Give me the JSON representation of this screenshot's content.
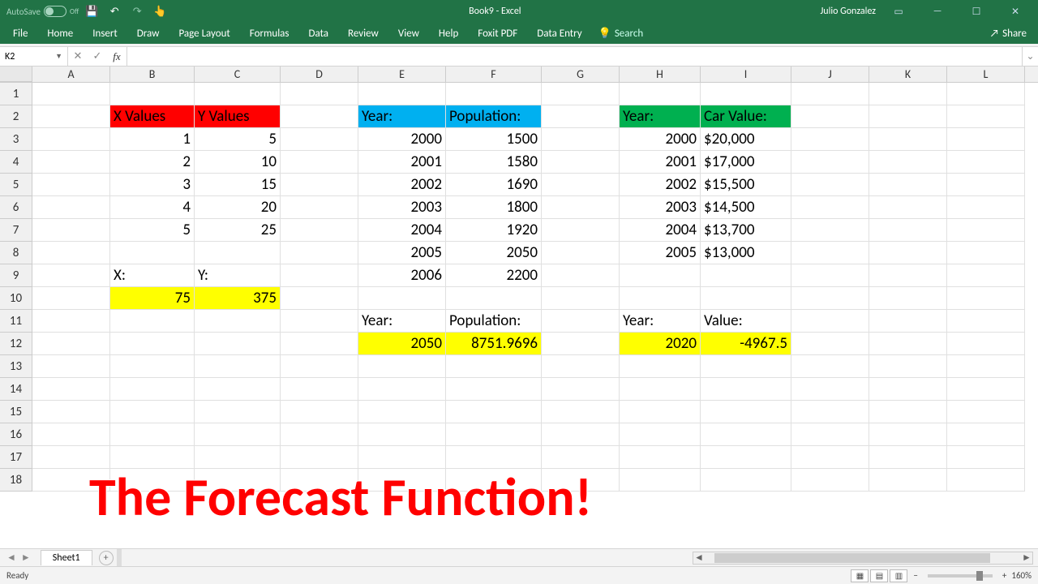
{
  "titlebar": {
    "autosave": "AutoSave",
    "autosave_state": "Off",
    "doc_title": "Book9 - Excel",
    "user": "Julio Gonzalez"
  },
  "ribbon": {
    "tabs": [
      "File",
      "Home",
      "Insert",
      "Draw",
      "Page Layout",
      "Formulas",
      "Data",
      "Review",
      "View",
      "Help",
      "Foxit PDF",
      "Data Entry"
    ],
    "tell_me": "Search",
    "share": "Share"
  },
  "namebox": "K2",
  "columns": [
    "A",
    "B",
    "C",
    "D",
    "E",
    "F",
    "G",
    "H",
    "I",
    "J",
    "K",
    "L"
  ],
  "rowcount": 18,
  "cells": {
    "B2": {
      "v": "X Values",
      "fill": "red",
      "align": "l"
    },
    "C2": {
      "v": "Y Values",
      "fill": "red",
      "align": "l"
    },
    "B3": {
      "v": "1",
      "align": "r"
    },
    "C3": {
      "v": "5",
      "align": "r"
    },
    "B4": {
      "v": "2",
      "align": "r"
    },
    "C4": {
      "v": "10",
      "align": "r"
    },
    "B5": {
      "v": "3",
      "align": "r"
    },
    "C5": {
      "v": "15",
      "align": "r"
    },
    "B6": {
      "v": "4",
      "align": "r"
    },
    "C6": {
      "v": "20",
      "align": "r"
    },
    "B7": {
      "v": "5",
      "align": "r"
    },
    "C7": {
      "v": "25",
      "align": "r"
    },
    "B9": {
      "v": "X:",
      "align": "l"
    },
    "C9": {
      "v": "Y:",
      "align": "l"
    },
    "B10": {
      "v": "75",
      "fill": "yellow",
      "align": "r"
    },
    "C10": {
      "v": "375",
      "fill": "yellow",
      "align": "r"
    },
    "E2": {
      "v": "Year:",
      "fill": "blue",
      "align": "l"
    },
    "F2": {
      "v": "Population:",
      "fill": "blue",
      "align": "l"
    },
    "E3": {
      "v": "2000",
      "align": "r"
    },
    "F3": {
      "v": "1500",
      "align": "r"
    },
    "E4": {
      "v": "2001",
      "align": "r"
    },
    "F4": {
      "v": "1580",
      "align": "r"
    },
    "E5": {
      "v": "2002",
      "align": "r"
    },
    "F5": {
      "v": "1690",
      "align": "r"
    },
    "E6": {
      "v": "2003",
      "align": "r"
    },
    "F6": {
      "v": "1800",
      "align": "r"
    },
    "E7": {
      "v": "2004",
      "align": "r"
    },
    "F7": {
      "v": "1920",
      "align": "r"
    },
    "E8": {
      "v": "2005",
      "align": "r"
    },
    "F8": {
      "v": "2050",
      "align": "r"
    },
    "E9": {
      "v": "2006",
      "align": "r"
    },
    "F9": {
      "v": "2200",
      "align": "r"
    },
    "E11": {
      "v": "Year:",
      "align": "l"
    },
    "F11": {
      "v": "Population:",
      "align": "l"
    },
    "E12": {
      "v": "2050",
      "fill": "yellow",
      "align": "r"
    },
    "F12": {
      "v": "8751.9696",
      "fill": "yellow",
      "align": "r"
    },
    "H2": {
      "v": "Year:",
      "fill": "green",
      "align": "l"
    },
    "I2": {
      "v": "Car Value:",
      "fill": "green",
      "align": "l"
    },
    "H3": {
      "v": "2000",
      "align": "r"
    },
    "I3": {
      "v": "$20,000",
      "align": "l"
    },
    "H4": {
      "v": "2001",
      "align": "r"
    },
    "I4": {
      "v": "$17,000",
      "align": "l"
    },
    "H5": {
      "v": "2002",
      "align": "r"
    },
    "I5": {
      "v": "$15,500",
      "align": "l"
    },
    "H6": {
      "v": "2003",
      "align": "r"
    },
    "I6": {
      "v": "$14,500",
      "align": "l"
    },
    "H7": {
      "v": "2004",
      "align": "r"
    },
    "I7": {
      "v": "$13,700",
      "align": "l"
    },
    "H8": {
      "v": "2005",
      "align": "r"
    },
    "I8": {
      "v": "$13,000",
      "align": "l"
    },
    "H11": {
      "v": "Year:",
      "align": "l"
    },
    "I11": {
      "v": "Value:",
      "align": "l"
    },
    "H12": {
      "v": "2020",
      "fill": "yellow",
      "align": "r"
    },
    "I12": {
      "v": "-4967.5",
      "fill": "yellow",
      "align": "r"
    }
  },
  "overlay": "The Forecast Function!",
  "sheet_tab": "Sheet1",
  "status": {
    "ready": "Ready",
    "zoom": "160%"
  },
  "colors": {
    "ribbon_green": "#217346",
    "fill_red": "#ff0000",
    "fill_blue": "#00b0f0",
    "fill_green": "#00b050",
    "fill_yellow": "#ffff00",
    "overlay_red": "#ff0000"
  }
}
